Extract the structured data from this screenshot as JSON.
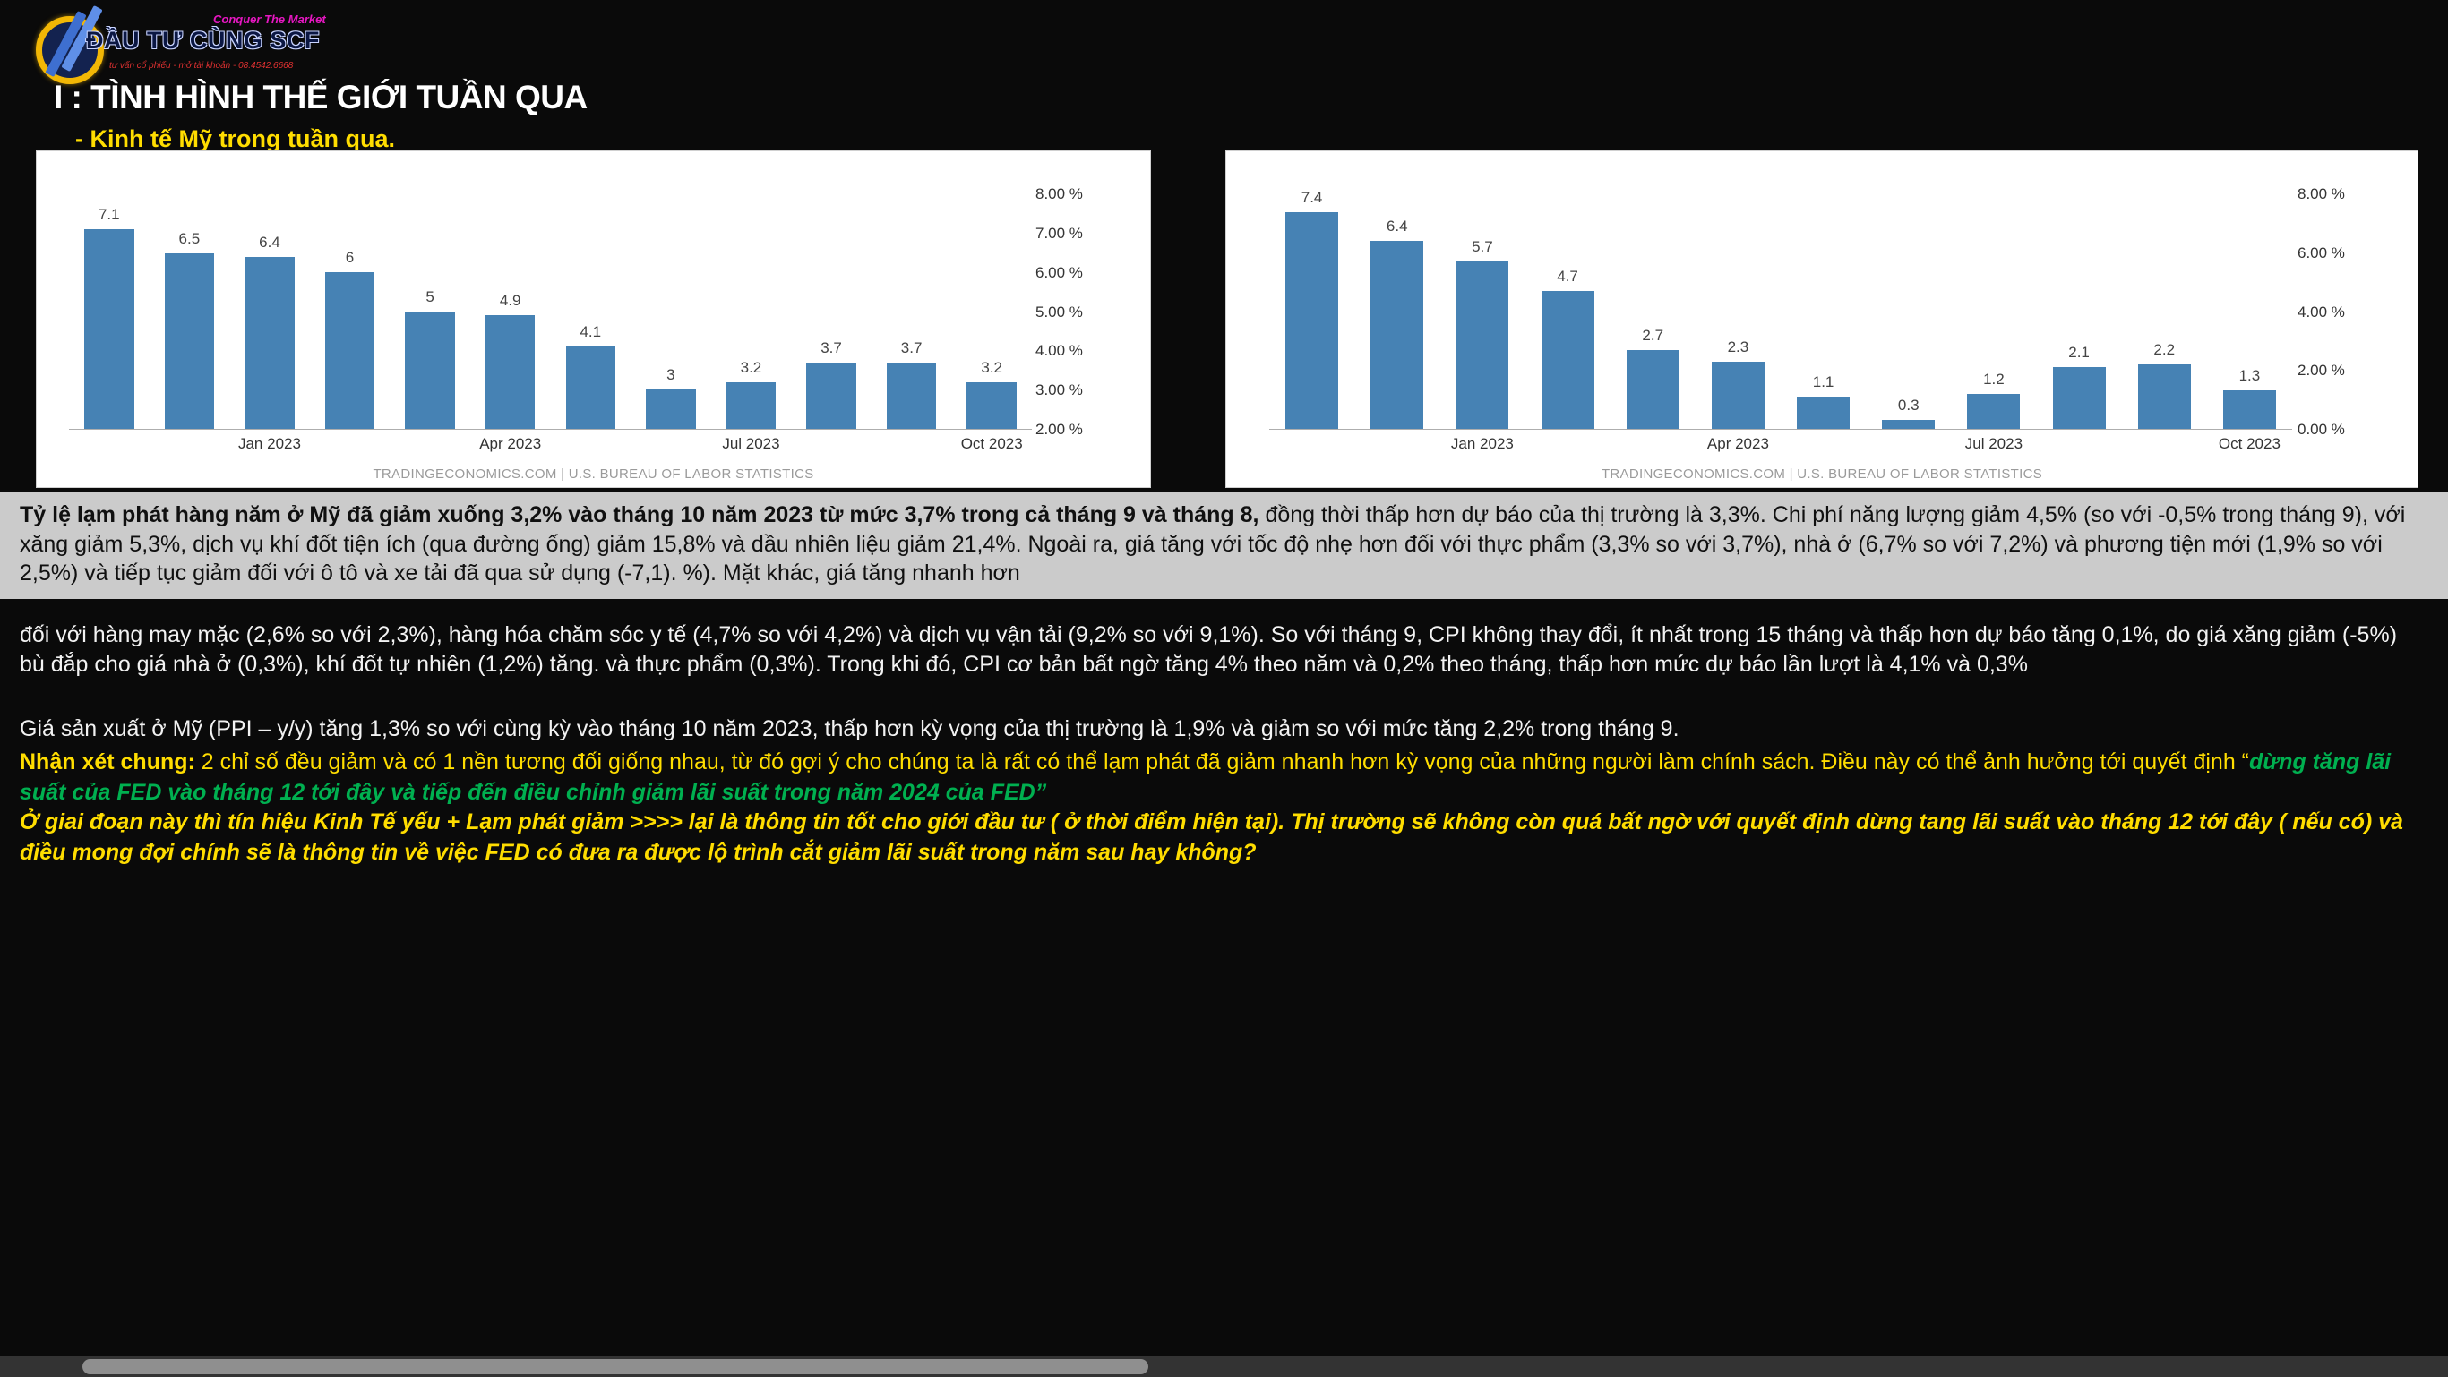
{
  "colors": {
    "page-bg": "#0a0a0a",
    "accent-yellow": "#ffdd00",
    "quote-green": "#00b050",
    "bar-blue": "#4682b4",
    "band-bg": "#cbcbcb",
    "logo-magenta": "#e617c1",
    "logo-red": "#e03131"
  },
  "logo": {
    "title": "ĐẦU TƯ CÙNG SCF",
    "tagline": "Conquer The Market",
    "subline": "tư vấn cổ phiếu - mở tài khoản - 08.4542.6668"
  },
  "header": {
    "section_title": "I : TÌNH HÌNH THẾ GIỚI TUẦN QUA",
    "bullet": "-  Kinh tế Mỹ trong tuần qua."
  },
  "chart_data": [
    {
      "type": "bar",
      "title": "",
      "values": [
        7.1,
        6.5,
        6.4,
        6,
        5,
        4.9,
        4.1,
        3,
        3.2,
        3.7,
        3.7,
        3.2
      ],
      "bar_labels": [
        "7.1",
        "6.5",
        "6.4",
        "6",
        "5",
        "4.9",
        "4.1",
        "3",
        "3.2",
        "3.7",
        "3.7",
        "3.2"
      ],
      "ylim": [
        2,
        8
      ],
      "y_ticks": [
        {
          "value": 8,
          "label": "8.00 %"
        },
        {
          "value": 7,
          "label": "7.00 %"
        },
        {
          "value": 6,
          "label": "6.00 %"
        },
        {
          "value": 5,
          "label": "5.00 %"
        },
        {
          "value": 4,
          "label": "4.00 %"
        },
        {
          "value": 3,
          "label": "3.00 %"
        },
        {
          "value": 2,
          "label": "2.00 %"
        }
      ],
      "x_ticks": [
        {
          "index": 2,
          "label": "Jan 2023"
        },
        {
          "index": 5,
          "label": "Apr 2023"
        },
        {
          "index": 8,
          "label": "Jul 2023"
        },
        {
          "index": 11,
          "label": "Oct 2023"
        }
      ],
      "legend": [],
      "grid": false,
      "source": "TRADINGECONOMICS.COM | U.S. BUREAU OF LABOR STATISTICS"
    },
    {
      "type": "bar",
      "title": "",
      "values": [
        7.4,
        6.4,
        5.7,
        4.7,
        2.7,
        2.3,
        1.1,
        0.3,
        1.2,
        2.1,
        2.2,
        1.3
      ],
      "bar_labels": [
        "7.4",
        "6.4",
        "5.7",
        "4.7",
        "2.7",
        "2.3",
        "1.1",
        "0.3",
        "1.2",
        "2.1",
        "2.2",
        "1.3"
      ],
      "ylim": [
        0,
        8
      ],
      "y_ticks": [
        {
          "value": 8,
          "label": "8.00 %"
        },
        {
          "value": 6,
          "label": "6.00 %"
        },
        {
          "value": 4,
          "label": "4.00 %"
        },
        {
          "value": 2,
          "label": "2.00 %"
        },
        {
          "value": 0,
          "label": "0.00 %"
        }
      ],
      "x_ticks": [
        {
          "index": 2,
          "label": "Jan 2023"
        },
        {
          "index": 5,
          "label": "Apr 2023"
        },
        {
          "index": 8,
          "label": "Jul 2023"
        },
        {
          "index": 11,
          "label": "Oct 2023"
        }
      ],
      "legend": [],
      "grid": false,
      "source": "TRADINGECONOMICS.COM | U.S. BUREAU OF LABOR STATISTICS"
    }
  ],
  "summary": {
    "bold": "Tỷ lệ lạm phát hàng năm ở Mỹ đã giảm xuống 3,2% vào tháng 10 năm 2023 từ mức 3,7% trong cả tháng 9 và tháng 8,",
    "rest": " đồng thời thấp hơn dự báo của thị trường là 3,3%. Chi phí năng lượng giảm 4,5% (so với -0,5% trong tháng 9), với xăng giảm 5,3%, dịch vụ khí đốt tiện ích (qua đường ống) giảm 15,8% và dầu nhiên liệu giảm 21,4%. Ngoài ra, giá tăng với tốc độ nhẹ hơn đối với thực phẩm (3,3% so với 3,7%), nhà ở (6,7% so với 7,2%) và phương tiện mới (1,9% so với 2,5%) và tiếp tục giảm đối với ô tô và xe tải đã qua sử dụng (-7,1). %). Mặt khác, giá tăng nhanh hơn"
  },
  "body": {
    "p1": "đối với hàng may mặc (2,6% so với 2,3%), hàng hóa chăm sóc y tế (4,7% so với 4,2%) và dịch vụ vận tải (9,2% so với 9,1%). So với tháng 9, CPI không thay đổi, ít nhất trong 15 tháng và thấp hơn dự báo tăng 0,1%, do giá xăng giảm (-5%) bù đắp cho giá nhà ở (0,3%), khí đốt tự nhiên (1,2%) tăng. và thực phẩm (0,3%). Trong khi đó, CPI cơ bản bất ngờ tăng 4% theo năm và 0,2% theo tháng, thấp hơn mức dự báo lần lượt là 4,1% và 0,3%",
    "p2": "Giá sản xuất ở Mỹ (PPI – y/y)  tăng 1,3% so với cùng kỳ vào tháng 10 năm 2023, thấp hơn kỳ vọng của thị trường là 1,9% và giảm so với mức tăng 2,2% trong tháng 9.",
    "remark_label": "Nhận xét chung:",
    "remark_text": " 2 chỉ số đều giảm và có 1 nền tương đối giống nhau, từ đó gợi ý cho chúng ta là rất có thể lạm phát đã giảm nhanh hơn kỳ vọng của những người làm chính sách. Điều này có thể ảnh hưởng tới quyết định “",
    "remark_quote": "dừng tăng lãi suất của FED vào tháng 12 tới đây và tiếp đến điều chỉnh giảm lãi suất trong năm 2024 của FED”",
    "outlook": "Ở giai đoạn này thì tín hiệu Kinh Tế yếu + Lạm phát giảm >>>> lại là thông tin tốt cho giới đầu tư ( ở thời điểm hiện tại).  Thị trường sẽ không còn quá bất ngờ với quyết định dừng tang lãi suất vào tháng 12 tới đây ( nếu có) và điều mong đợi chính sẽ là thông tin về việc FED có đưa ra được lộ trình cắt giảm lãi suất trong năm sau hay không?"
  }
}
